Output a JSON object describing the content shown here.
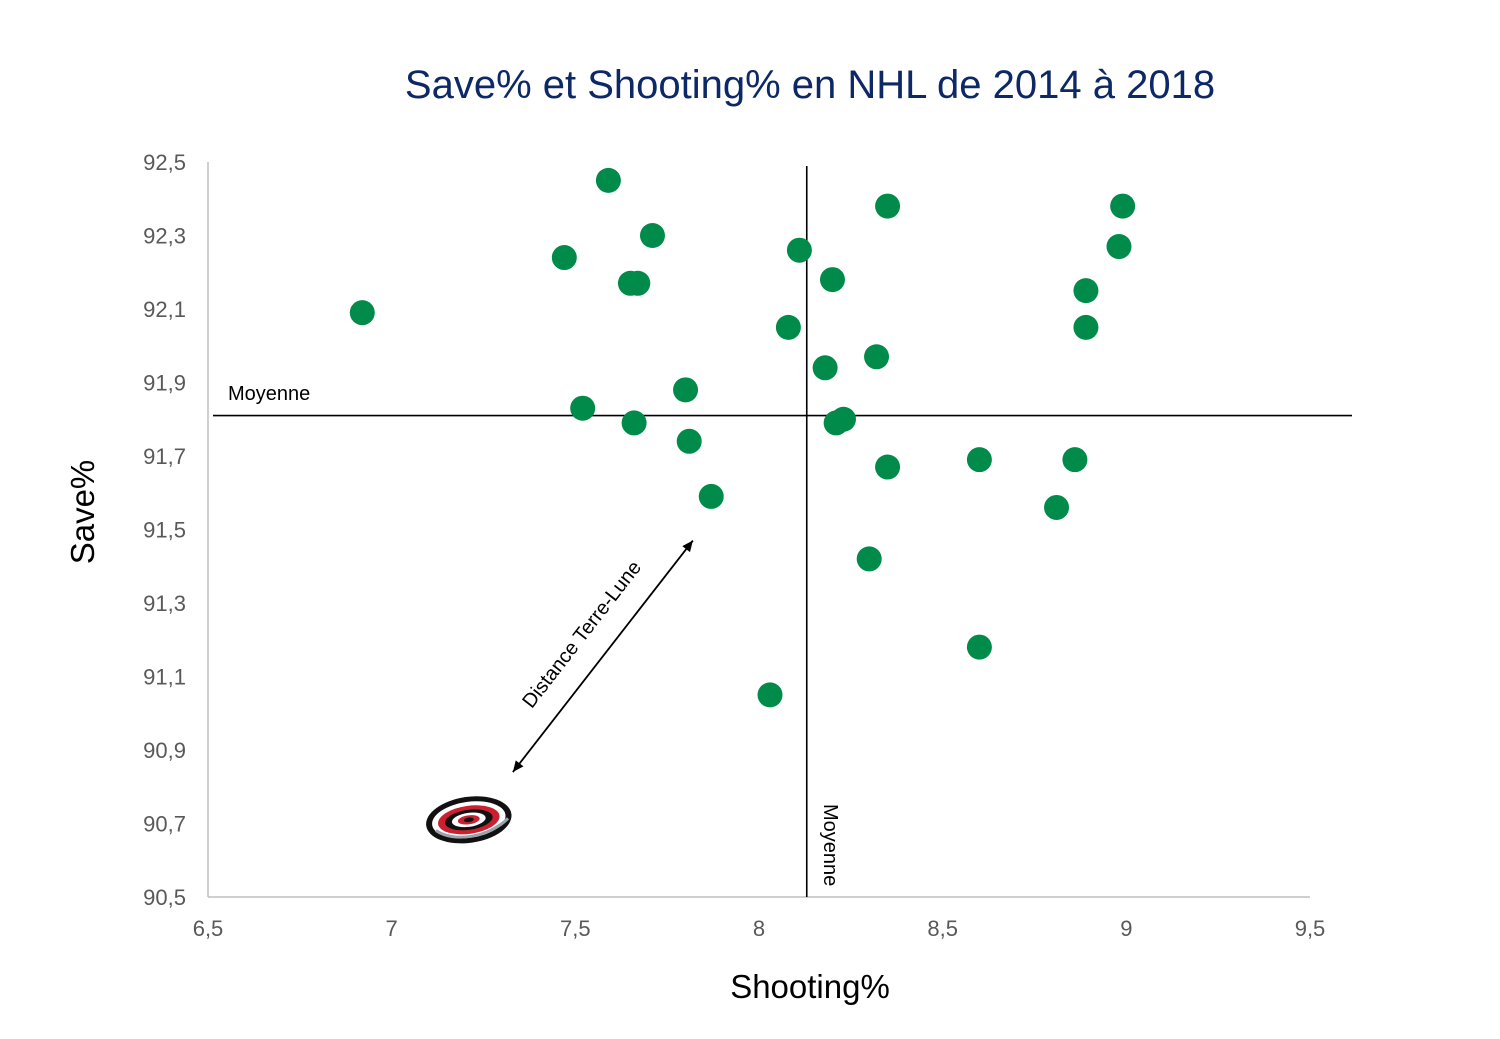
{
  "chart_data": {
    "type": "scatter",
    "title": "Save% et Shooting% en NHL de 2014 à 2018",
    "xlabel": "Shooting%",
    "ylabel": "Save%",
    "xlim": [
      6.5,
      9.5
    ],
    "ylim": [
      90.5,
      92.5
    ],
    "x_ticks": [
      "6,5",
      "7",
      "7,5",
      "8",
      "8,5",
      "9",
      "9,5"
    ],
    "y_ticks": [
      "92,5",
      "92,3",
      "92,1",
      "91,9",
      "91,7",
      "91,5",
      "91,3",
      "91,1",
      "90,9",
      "90,7",
      "90,5"
    ],
    "grid": false,
    "point_color": "#008b4a",
    "points": [
      {
        "x": 6.92,
        "y": 92.09
      },
      {
        "x": 7.47,
        "y": 92.24
      },
      {
        "x": 7.52,
        "y": 91.83
      },
      {
        "x": 7.59,
        "y": 92.45
      },
      {
        "x": 7.65,
        "y": 92.17
      },
      {
        "x": 7.67,
        "y": 92.17
      },
      {
        "x": 7.66,
        "y": 91.79
      },
      {
        "x": 7.71,
        "y": 92.3
      },
      {
        "x": 7.8,
        "y": 91.88
      },
      {
        "x": 7.81,
        "y": 91.74
      },
      {
        "x": 7.87,
        "y": 91.59
      },
      {
        "x": 8.03,
        "y": 91.05
      },
      {
        "x": 8.08,
        "y": 92.05
      },
      {
        "x": 8.11,
        "y": 92.26
      },
      {
        "x": 8.18,
        "y": 91.94
      },
      {
        "x": 8.2,
        "y": 92.18
      },
      {
        "x": 8.21,
        "y": 91.79
      },
      {
        "x": 8.23,
        "y": 91.8
      },
      {
        "x": 8.3,
        "y": 91.42
      },
      {
        "x": 8.32,
        "y": 91.97
      },
      {
        "x": 8.35,
        "y": 92.38
      },
      {
        "x": 8.35,
        "y": 91.67
      },
      {
        "x": 8.6,
        "y": 91.69
      },
      {
        "x": 8.6,
        "y": 91.18
      },
      {
        "x": 8.81,
        "y": 91.56
      },
      {
        "x": 8.86,
        "y": 91.69
      },
      {
        "x": 8.89,
        "y": 92.15
      },
      {
        "x": 8.89,
        "y": 92.05
      },
      {
        "x": 8.98,
        "y": 92.27
      },
      {
        "x": 8.99,
        "y": 92.38
      }
    ],
    "reference_lines": {
      "mean_x": 8.13,
      "mean_y": 91.81,
      "label": "Moyenne"
    },
    "annotation": {
      "text": "Distance Terre-Lune",
      "arrow_from": {
        "x": 7.33,
        "y": 90.84
      },
      "arrow_to": {
        "x": 7.82,
        "y": 91.47
      }
    },
    "team_logo": {
      "x": 7.21,
      "y": 90.71,
      "icon": "carolina-hurricanes-logo"
    }
  }
}
